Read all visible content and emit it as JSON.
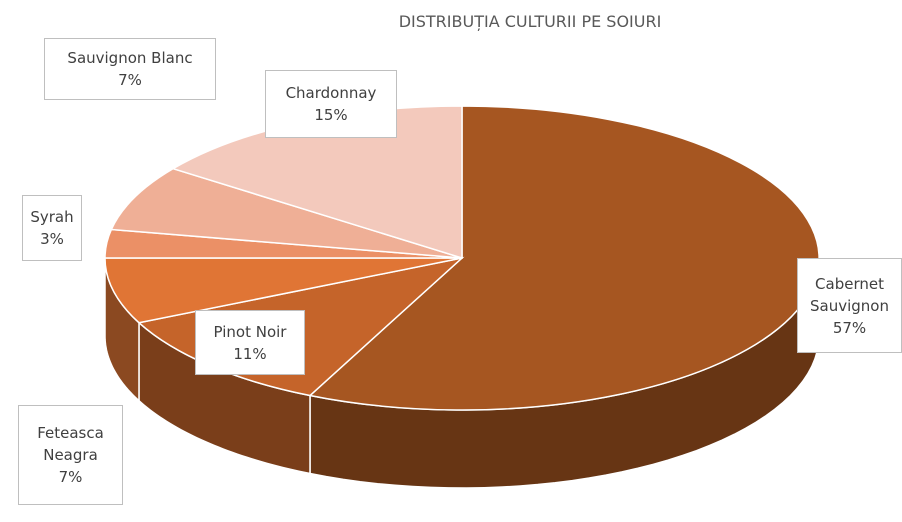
{
  "chart_data": {
    "type": "pie",
    "title": "DISTRIBUȚIA CULTURII PE SOIURI",
    "categories": [
      "Cabernet Sauvignon",
      "Pinot Noir",
      "Feteasca Neagra",
      "Syrah",
      "Sauvignon Blanc",
      "Chardonnay"
    ],
    "values": [
      57,
      11,
      7,
      3,
      7,
      15
    ],
    "value_labels": [
      "57%",
      "11%",
      "7%",
      "3%",
      "7%",
      "15%"
    ],
    "colors": [
      "#a65621",
      "#c5642a",
      "#e07535",
      "#eb9066",
      "#efaf96",
      "#f3c9bc"
    ]
  }
}
